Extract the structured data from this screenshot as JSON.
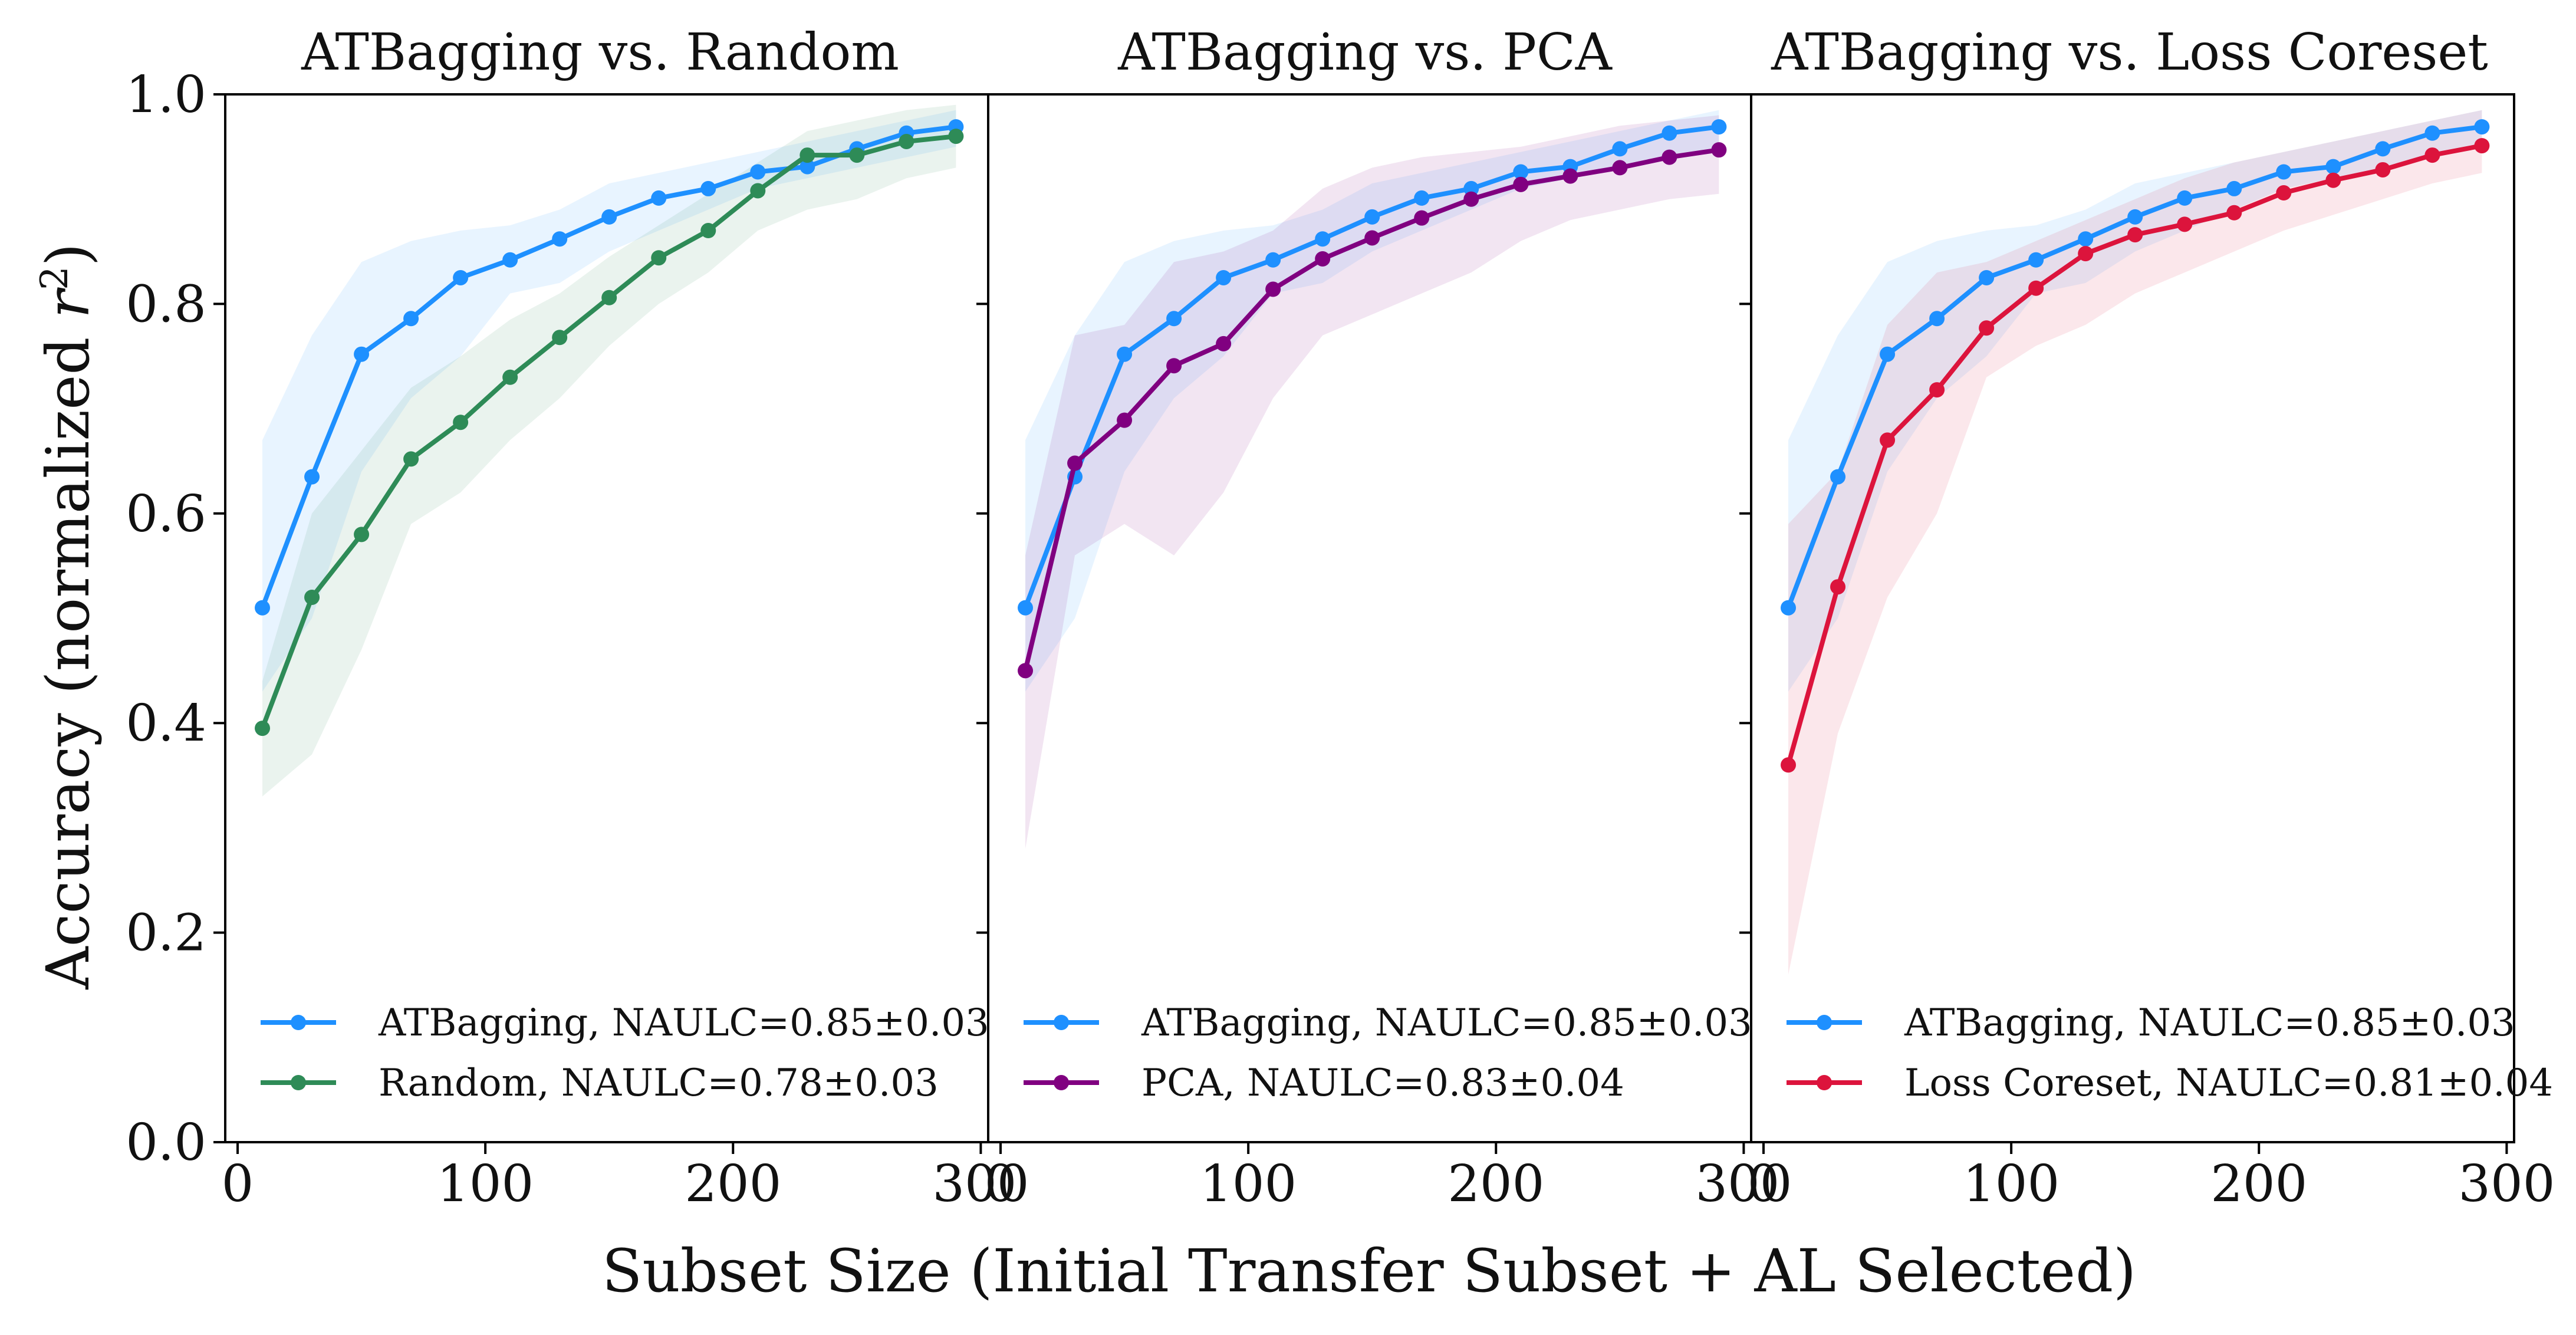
{
  "figure": {
    "ylabel_prefix": "Accuracy (normalized ",
    "ylabel_var": "r",
    "ylabel_sup": "2",
    "ylabel_suffix": ")",
    "xlabel": "Subset Size (Initial Transfer Subset + AL Selected)",
    "x_ticks": [
      "0",
      "100",
      "200",
      "300"
    ],
    "y_ticks": [
      "0.0",
      "0.2",
      "0.4",
      "0.6",
      "0.8",
      "1.0"
    ]
  },
  "chart_data": [
    {
      "type": "line",
      "title": "ATBagging vs. Random",
      "xlabel": "Subset Size (Initial Transfer Subset + AL Selected)",
      "ylabel": "Accuracy (normalized r^2)",
      "xlim": [
        -5,
        303
      ],
      "ylim": [
        0.0,
        1.0
      ],
      "x": [
        10,
        30,
        50,
        70,
        90,
        110,
        130,
        150,
        170,
        190,
        210,
        230,
        250,
        270,
        290
      ],
      "series": [
        {
          "name": "ATBagging",
          "legend": "ATBagging, NAULC=0.85±0.03",
          "color": "#1e90ff",
          "values": [
            0.51,
            0.635,
            0.752,
            0.786,
            0.825,
            0.842,
            0.862,
            0.883,
            0.901,
            0.91,
            0.926,
            0.931,
            0.948,
            0.963,
            0.969
          ],
          "lower": [
            0.43,
            0.5,
            0.64,
            0.71,
            0.75,
            0.81,
            0.82,
            0.85,
            0.87,
            0.89,
            0.91,
            0.92,
            0.93,
            0.94,
            0.95
          ],
          "upper": [
            0.67,
            0.77,
            0.84,
            0.86,
            0.87,
            0.875,
            0.89,
            0.915,
            0.925,
            0.935,
            0.945,
            0.955,
            0.965,
            0.975,
            0.985
          ]
        },
        {
          "name": "Random",
          "legend": "Random, NAULC=0.78±0.03",
          "color": "#2e8b57",
          "values": [
            0.395,
            0.52,
            0.58,
            0.652,
            0.687,
            0.73,
            0.768,
            0.806,
            0.844,
            0.87,
            0.908,
            0.942,
            0.942,
            0.955,
            0.96
          ],
          "lower": [
            0.33,
            0.37,
            0.47,
            0.59,
            0.62,
            0.67,
            0.71,
            0.76,
            0.8,
            0.83,
            0.87,
            0.89,
            0.9,
            0.92,
            0.93
          ],
          "upper": [
            0.44,
            0.6,
            0.66,
            0.72,
            0.75,
            0.785,
            0.81,
            0.845,
            0.875,
            0.905,
            0.935,
            0.965,
            0.975,
            0.985,
            0.99
          ]
        }
      ]
    },
    {
      "type": "line",
      "title": "ATBagging vs. PCA",
      "xlabel": "Subset Size (Initial Transfer Subset + AL Selected)",
      "ylabel": "Accuracy (normalized r^2)",
      "xlim": [
        -5,
        303
      ],
      "ylim": [
        0.0,
        1.0
      ],
      "x": [
        10,
        30,
        50,
        70,
        90,
        110,
        130,
        150,
        170,
        190,
        210,
        230,
        250,
        270,
        290
      ],
      "series": [
        {
          "name": "ATBagging",
          "legend": "ATBagging, NAULC=0.85±0.03",
          "color": "#1e90ff",
          "values": [
            0.51,
            0.635,
            0.752,
            0.786,
            0.825,
            0.842,
            0.862,
            0.883,
            0.901,
            0.91,
            0.926,
            0.931,
            0.948,
            0.963,
            0.969
          ],
          "lower": [
            0.43,
            0.5,
            0.64,
            0.71,
            0.75,
            0.81,
            0.82,
            0.85,
            0.87,
            0.89,
            0.91,
            0.92,
            0.93,
            0.94,
            0.95
          ],
          "upper": [
            0.67,
            0.77,
            0.84,
            0.86,
            0.87,
            0.875,
            0.89,
            0.915,
            0.925,
            0.935,
            0.945,
            0.955,
            0.965,
            0.975,
            0.985
          ]
        },
        {
          "name": "PCA",
          "legend": "PCA, NAULC=0.83±0.04",
          "color": "#800080",
          "values": [
            0.45,
            0.648,
            0.689,
            0.741,
            0.762,
            0.814,
            0.843,
            0.863,
            0.882,
            0.9,
            0.914,
            0.922,
            0.93,
            0.94,
            0.947
          ],
          "lower": [
            0.28,
            0.56,
            0.59,
            0.56,
            0.62,
            0.71,
            0.77,
            0.79,
            0.81,
            0.83,
            0.86,
            0.88,
            0.89,
            0.9,
            0.905
          ],
          "upper": [
            0.56,
            0.77,
            0.78,
            0.84,
            0.85,
            0.87,
            0.91,
            0.93,
            0.94,
            0.945,
            0.95,
            0.96,
            0.97,
            0.975,
            0.98
          ]
        }
      ]
    },
    {
      "type": "line",
      "title": "ATBagging vs. Loss Coreset",
      "xlabel": "Subset Size (Initial Transfer Subset + AL Selected)",
      "ylabel": "Accuracy (normalized r^2)",
      "xlim": [
        -5,
        303
      ],
      "ylim": [
        0.0,
        1.0
      ],
      "x": [
        10,
        30,
        50,
        70,
        90,
        110,
        130,
        150,
        170,
        190,
        210,
        230,
        250,
        270,
        290
      ],
      "series": [
        {
          "name": "ATBagging",
          "legend": "ATBagging, NAULC=0.85±0.03",
          "color": "#1e90ff",
          "values": [
            0.51,
            0.635,
            0.752,
            0.786,
            0.825,
            0.842,
            0.862,
            0.883,
            0.901,
            0.91,
            0.926,
            0.931,
            0.948,
            0.963,
            0.969
          ],
          "lower": [
            0.43,
            0.5,
            0.64,
            0.71,
            0.75,
            0.81,
            0.82,
            0.85,
            0.87,
            0.89,
            0.91,
            0.92,
            0.93,
            0.94,
            0.95
          ],
          "upper": [
            0.67,
            0.77,
            0.84,
            0.86,
            0.87,
            0.875,
            0.89,
            0.915,
            0.925,
            0.935,
            0.945,
            0.955,
            0.965,
            0.975,
            0.985
          ]
        },
        {
          "name": "Loss Coreset",
          "legend": "Loss Coreset, NAULC=0.81±0.04",
          "color": "#dc143c",
          "values": [
            0.36,
            0.53,
            0.67,
            0.718,
            0.777,
            0.815,
            0.848,
            0.866,
            0.876,
            0.887,
            0.906,
            0.918,
            0.928,
            0.942,
            0.951
          ],
          "lower": [
            0.16,
            0.39,
            0.52,
            0.6,
            0.73,
            0.76,
            0.78,
            0.81,
            0.83,
            0.85,
            0.87,
            0.885,
            0.9,
            0.915,
            0.925
          ],
          "upper": [
            0.59,
            0.64,
            0.78,
            0.83,
            0.84,
            0.86,
            0.88,
            0.9,
            0.92,
            0.935,
            0.945,
            0.955,
            0.965,
            0.975,
            0.985
          ]
        }
      ]
    }
  ]
}
